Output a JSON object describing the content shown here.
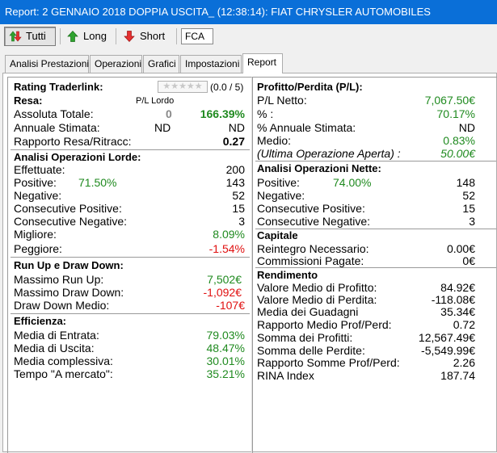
{
  "window": {
    "title": "Report: 2 GENNAIO 2018 DOPPIA USCITA_ (12:38:14): FIAT CHRYSLER AUTOMOBILES"
  },
  "toolbar": {
    "tutti": "Tutti",
    "long": "Long",
    "short": "Short",
    "symbol": "FCA"
  },
  "tabs": [
    "Analisi Prestazioni",
    "Operazioni",
    "Grafici",
    "Impostazioni",
    "Report"
  ],
  "left": {
    "rating": {
      "label": "Rating Traderlink:",
      "stars": "★★★★★",
      "count": "(0.0 / 5)"
    },
    "resa": {
      "title": "Resa:",
      "pl_lordo_header": "P/L Lordo",
      "assoluta_label": "Assoluta Totale:",
      "assoluta_mid": "0",
      "assoluta_value": "166.39%",
      "annuale_label": "Annuale Stimata:",
      "annuale_mid": "ND",
      "annuale_value": "ND",
      "rapporto_label": "Rapporto Resa/Ritracc:",
      "rapporto_value": "0.27"
    },
    "lorde": {
      "title": "Analisi Operazioni Lorde:",
      "effettuate_label": "Effettuate:",
      "effettuate_value": "200",
      "positive_label": "Positive:",
      "positive_pct": "71.50%",
      "positive_value": "143",
      "negative_label": "Negative:",
      "negative_value": "52",
      "cons_pos_label": "Consecutive Positive:",
      "cons_pos_value": "15",
      "cons_neg_label": "Consecutive Negative:",
      "cons_neg_value": "3",
      "migliore_label": "Migliore:",
      "migliore_value": "8.09%",
      "peggiore_label": "Peggiore:",
      "peggiore_value": "-1.54%"
    },
    "runup": {
      "title": "Run Up e Draw Down:",
      "massimo_runup_label": "Massimo Run Up:",
      "massimo_runup_value": "7,502€",
      "massimo_dd_label": "Massimo Draw Down:",
      "massimo_dd_value": "-1,092€",
      "dd_medio_label": "Draw Down Medio:",
      "dd_medio_value": "-107€"
    },
    "efficienza": {
      "title": "Efficienza:",
      "entrata_label": "Media di Entrata:",
      "entrata_value": "79.03%",
      "uscita_label": "Media di Uscita:",
      "uscita_value": "48.47%",
      "complessiva_label": "Media complessiva:",
      "complessiva_value": "30.01%",
      "tempo_label": "Tempo \"A mercato\":",
      "tempo_value": "35.21%"
    }
  },
  "right": {
    "pl": {
      "title": "Profitto/Perdita (P/L):",
      "netto_label": "P/L Netto:",
      "netto_value": "7,067.50€",
      "pct_label": "% :",
      "pct_value": "70.17%",
      "annuale_label": "% Annuale Stimata:",
      "annuale_value": "ND",
      "medio_label": "Medio:",
      "medio_value": "0.83%",
      "ultima_label": "(Ultima Operazione Aperta) :",
      "ultima_value": "50.00€"
    },
    "nette": {
      "title": "Analisi Operazioni Nette:",
      "positive_label": "Positive:",
      "positive_pct": "74.00%",
      "positive_value": "148",
      "negative_label": "Negative:",
      "negative_value": "52",
      "cons_pos_label": "Consecutive Positive:",
      "cons_pos_value": "15",
      "cons_neg_label": "Consecutive Negative:",
      "cons_neg_value": "3"
    },
    "capitale": {
      "title": "Capitale",
      "reintegro_label": "Reintegro Necessario:",
      "reintegro_value": "0.00€",
      "commissioni_label": "Commissioni Pagate:",
      "commissioni_value": "0€"
    },
    "rendimento": {
      "title": "Rendimento",
      "vm_profitto_label": "Valore Medio di Profitto:",
      "vm_profitto_value": "84.92€",
      "vm_perdita_label": "Valore Medio di Perdita:",
      "vm_perdita_value": "-118.08€",
      "media_guadagni_label": "Media dei Guadagni",
      "media_guadagni_value": "35.34€",
      "rapporto_medio_label": "Rapporto Medio Prof/Perd:",
      "rapporto_medio_value": "0.72",
      "somma_profitti_label": "Somma dei Profitti:",
      "somma_profitti_value": "12,567.49€",
      "somma_perdite_label": "Somma delle Perdite:",
      "somma_perdite_value": "-5,549.99€",
      "rapporto_somme_label": "Rapporto Somme Prof/Perd:",
      "rapporto_somme_value": "2.26",
      "rina_label": "RINA Index",
      "rina_value": "187.74"
    }
  }
}
